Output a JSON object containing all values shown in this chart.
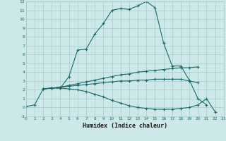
{
  "xlabel": "Humidex (Indice chaleur)",
  "background_color": "#cce8e8",
  "grid_color": "#aacccc",
  "line_color": "#1a6b6b",
  "xlim": [
    0,
    23
  ],
  "ylim": [
    -1,
    12
  ],
  "xticks": [
    0,
    1,
    2,
    3,
    4,
    5,
    6,
    7,
    8,
    9,
    10,
    11,
    12,
    13,
    14,
    15,
    16,
    17,
    18,
    19,
    20,
    21,
    22,
    23
  ],
  "yticks": [
    -1,
    0,
    1,
    2,
    3,
    4,
    5,
    6,
    7,
    8,
    9,
    10,
    11,
    12
  ],
  "series": [
    {
      "x": [
        0,
        1,
        2,
        3,
        4,
        5,
        6,
        7,
        8,
        9,
        10,
        11,
        12,
        13,
        14,
        15,
        16,
        17,
        18,
        19,
        20,
        21
      ],
      "y": [
        0.1,
        0.3,
        2.1,
        2.2,
        2.2,
        3.5,
        6.5,
        6.6,
        8.3,
        9.5,
        11.0,
        11.2,
        11.1,
        11.5,
        12.0,
        11.3,
        7.3,
        4.7,
        4.7,
        3.1,
        1.0,
        0.3
      ]
    },
    {
      "x": [
        2,
        3,
        4,
        5,
        6,
        7,
        8,
        9,
        10,
        11,
        12,
        13,
        14,
        15,
        16,
        17,
        18,
        19,
        20
      ],
      "y": [
        2.1,
        2.2,
        2.3,
        2.5,
        2.7,
        2.9,
        3.1,
        3.3,
        3.5,
        3.7,
        3.8,
        4.0,
        4.1,
        4.2,
        4.3,
        4.4,
        4.5,
        4.5,
        4.6
      ]
    },
    {
      "x": [
        2,
        3,
        4,
        5,
        6,
        7,
        8,
        9,
        10,
        11,
        12,
        13,
        14,
        15,
        16,
        17,
        18,
        19,
        20
      ],
      "y": [
        2.1,
        2.2,
        2.3,
        2.4,
        2.5,
        2.6,
        2.7,
        2.8,
        2.9,
        3.0,
        3.0,
        3.1,
        3.1,
        3.2,
        3.2,
        3.2,
        3.2,
        3.0,
        2.8
      ]
    },
    {
      "x": [
        2,
        3,
        4,
        5,
        6,
        7,
        8,
        9,
        10,
        11,
        12,
        13,
        14,
        15,
        16,
        17,
        18,
        19,
        20,
        21,
        22
      ],
      "y": [
        2.1,
        2.2,
        2.2,
        2.1,
        2.0,
        1.8,
        1.5,
        1.2,
        0.8,
        0.5,
        0.2,
        0.0,
        -0.1,
        -0.2,
        -0.2,
        -0.2,
        -0.1,
        0.0,
        0.3,
        1.0,
        -0.5
      ]
    }
  ]
}
